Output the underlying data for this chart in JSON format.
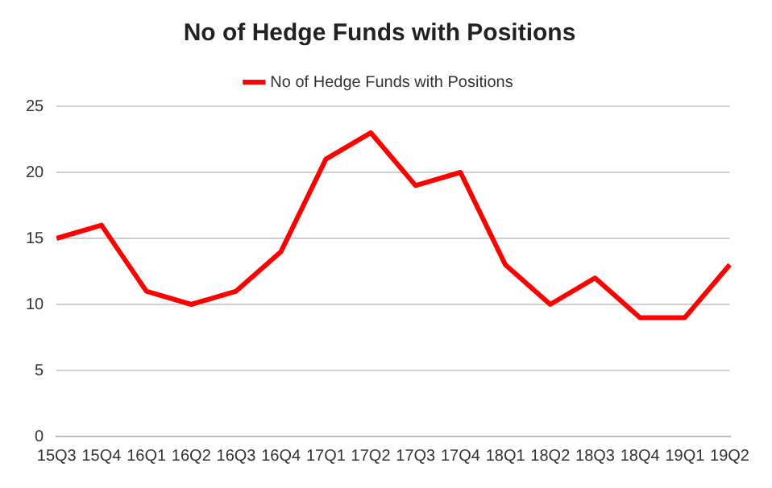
{
  "chart_data": {
    "type": "line",
    "title": "No of Hedge Funds with Positions",
    "categories": [
      "15Q3",
      "15Q4",
      "16Q1",
      "16Q2",
      "16Q3",
      "16Q4",
      "17Q1",
      "17Q2",
      "17Q3",
      "17Q4",
      "18Q1",
      "18Q2",
      "18Q3",
      "18Q4",
      "19Q1",
      "19Q2"
    ],
    "series": [
      {
        "name": "No of Hedge Funds with Positions",
        "color": "#ff0000",
        "values": [
          15,
          16,
          11,
          10,
          11,
          14,
          21,
          23,
          19,
          20,
          13,
          10,
          12,
          9,
          9,
          13
        ]
      }
    ],
    "ylim": [
      0,
      25
    ],
    "yticks": [
      0,
      5,
      10,
      15,
      20,
      25
    ],
    "grid": "y",
    "legend": "top",
    "marker": "none",
    "line_style": "solid"
  }
}
